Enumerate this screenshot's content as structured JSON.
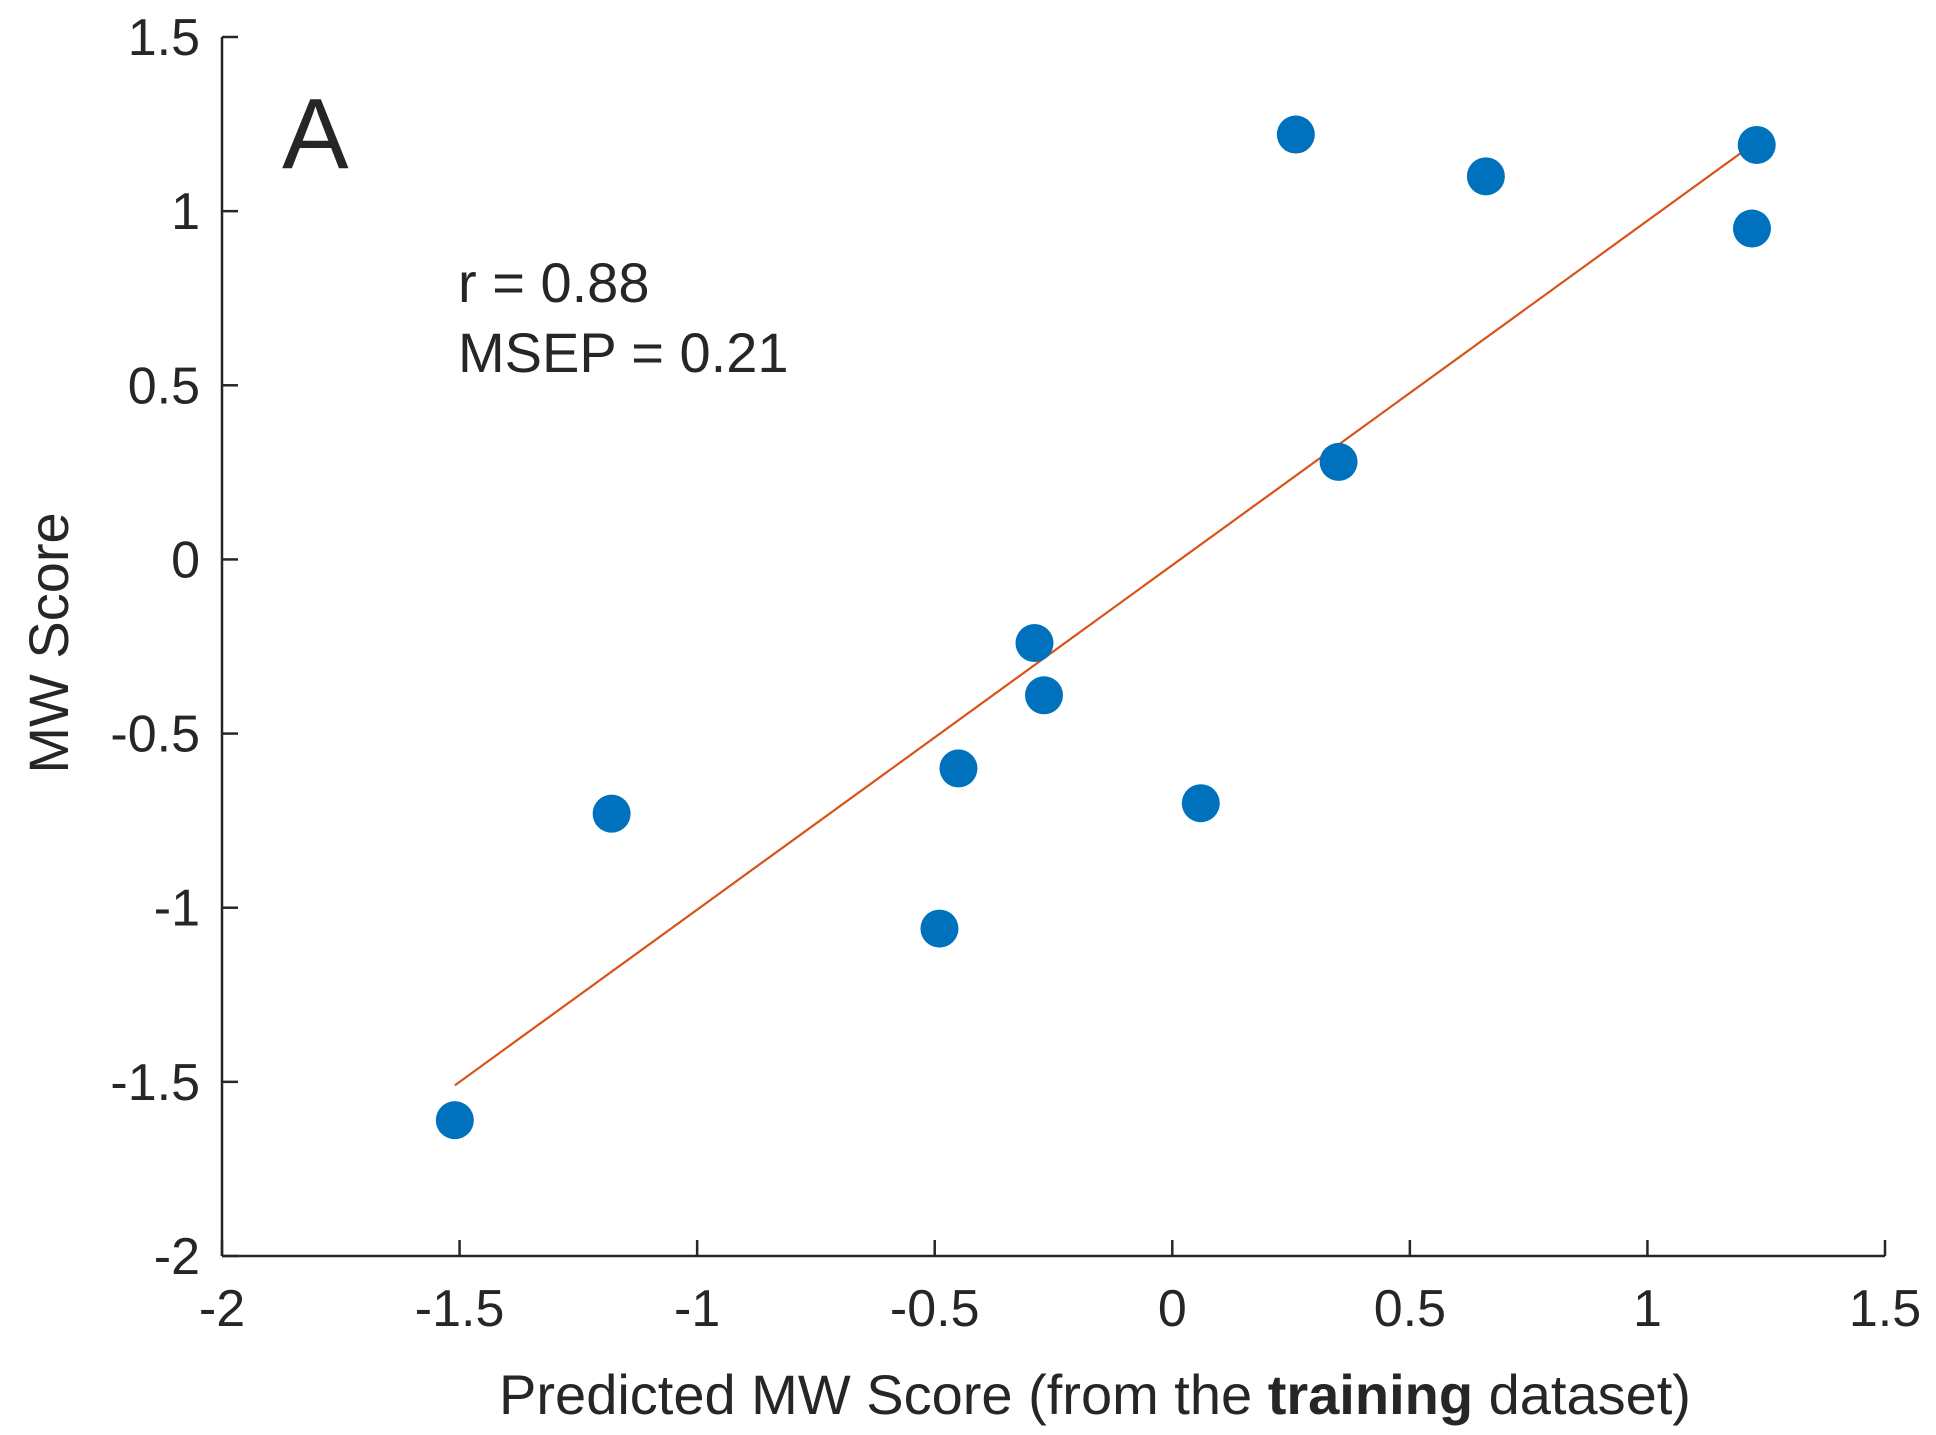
{
  "chart_data": {
    "type": "scatter",
    "panel_label": "A",
    "xlabel": {
      "prefix": "Predicted MW Score (from the ",
      "bold": "training",
      "suffix": " dataset)"
    },
    "ylabel": "MW Score",
    "xlim": [
      -2,
      1.5
    ],
    "ylim": [
      -2,
      1.5
    ],
    "xticks": [
      -2,
      -1.5,
      -1,
      -0.5,
      0,
      0.5,
      1,
      1.5
    ],
    "yticks": [
      -2,
      -1.5,
      -1,
      -0.5,
      0,
      0.5,
      1,
      1.5
    ],
    "xtick_labels": [
      "-2",
      "-1.5",
      "-1",
      "-0.5",
      "0",
      "0.5",
      "1",
      "1.5"
    ],
    "ytick_labels": [
      "-2",
      "-1.5",
      "-1",
      "-0.5",
      "0",
      "0.5",
      "1",
      "1.5"
    ],
    "grid": false,
    "annotations": [
      "r = 0.88",
      "MSEP = 0.21"
    ],
    "points": [
      {
        "x": -1.51,
        "y": -1.61
      },
      {
        "x": -1.18,
        "y": -0.73
      },
      {
        "x": -0.49,
        "y": -1.06
      },
      {
        "x": -0.45,
        "y": -0.6
      },
      {
        "x": -0.29,
        "y": -0.24
      },
      {
        "x": -0.27,
        "y": -0.39
      },
      {
        "x": 0.06,
        "y": -0.7
      },
      {
        "x": 0.26,
        "y": 1.22
      },
      {
        "x": 0.35,
        "y": 0.28
      },
      {
        "x": 0.66,
        "y": 1.1
      },
      {
        "x": 1.22,
        "y": 0.95
      },
      {
        "x": 1.23,
        "y": 1.19
      }
    ],
    "fit_line": {
      "x": [
        -1.51,
        1.23
      ],
      "y": [
        -1.51,
        1.2
      ]
    },
    "colors": {
      "points": "#0072BD",
      "fit_line": "#D95319",
      "axes": "#262626"
    }
  }
}
